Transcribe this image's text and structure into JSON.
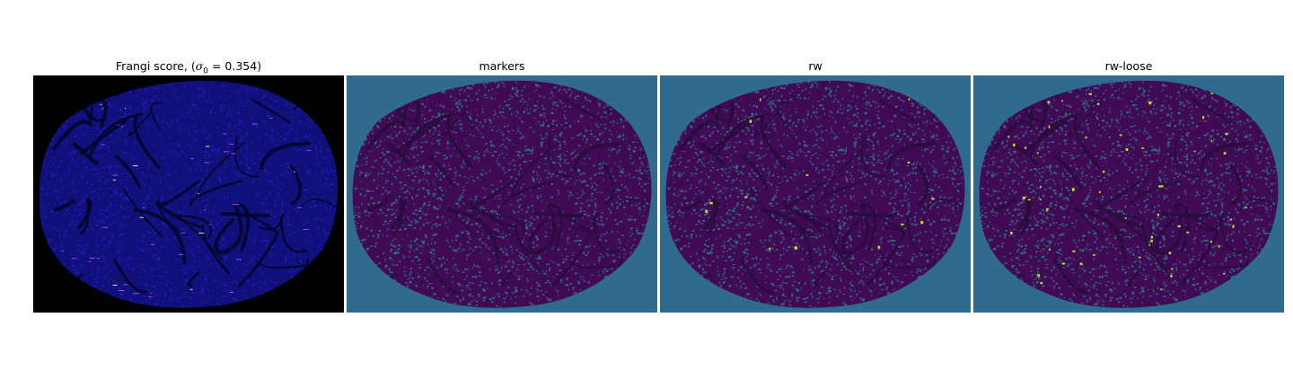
{
  "panels": [
    {
      "title_prefix": "Frangi score, (",
      "sigma_symbol": "σ",
      "sigma_subscript": "0",
      "equals_value": " = 0.354)",
      "colormap": "gnuplot2"
    },
    {
      "title": "markers",
      "colormap": "viridis"
    },
    {
      "title": "rw",
      "colormap": "viridis"
    },
    {
      "title": "rw-loose",
      "colormap": "viridis"
    }
  ],
  "colors": {
    "frangi_background": "#000000",
    "frangi_tissue": "#10107a",
    "frangi_low": "#2a1fd0",
    "frangi_mid": "#b03cff",
    "frangi_high": "#ffd07a",
    "viridis_background": "#306a8c",
    "viridis_tissue": "#400a55",
    "viridis_mid": "#2f7f8e",
    "viridis_high": "#c8e020"
  }
}
